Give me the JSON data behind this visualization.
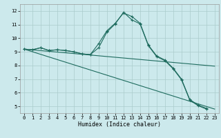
{
  "xlabel": "Humidex (Indice chaleur)",
  "bg_color": "#cce9ec",
  "grid_color": "#aacccc",
  "line_color": "#1e6b5e",
  "xlim": [
    -0.5,
    23.5
  ],
  "ylim": [
    4.5,
    12.5
  ],
  "xticks": [
    0,
    1,
    2,
    3,
    4,
    5,
    6,
    7,
    8,
    9,
    10,
    11,
    12,
    13,
    14,
    15,
    16,
    17,
    18,
    19,
    20,
    21,
    22,
    23
  ],
  "yticks": [
    5,
    6,
    7,
    8,
    9,
    10,
    11,
    12
  ],
  "curves": [
    {
      "x": [
        0,
        1,
        2,
        3,
        4,
        5,
        6,
        7,
        8,
        9,
        10,
        11,
        12,
        13,
        14,
        15,
        16,
        17,
        18,
        19,
        20,
        21,
        22
      ],
      "y": [
        9.2,
        9.15,
        9.3,
        9.1,
        9.15,
        9.1,
        9.0,
        8.85,
        8.8,
        9.6,
        10.55,
        11.1,
        11.85,
        11.6,
        11.1,
        9.5,
        8.7,
        8.4,
        7.8,
        7.0,
        5.5,
        5.1,
        4.85
      ],
      "marker": true
    },
    {
      "x": [
        0,
        1,
        2,
        3,
        4,
        5,
        6,
        7,
        8,
        9,
        10,
        11,
        12,
        13,
        14,
        15,
        16,
        17,
        18,
        19,
        20,
        21,
        22
      ],
      "y": [
        9.2,
        9.15,
        9.3,
        9.1,
        9.15,
        9.1,
        9.0,
        8.85,
        8.8,
        9.3,
        10.45,
        11.05,
        11.9,
        11.35,
        11.05,
        9.45,
        8.65,
        8.35,
        7.75,
        6.95,
        5.45,
        5.05,
        4.8
      ],
      "marker": true
    },
    {
      "x": [
        0,
        23
      ],
      "y": [
        9.2,
        7.95
      ],
      "marker": false
    },
    {
      "x": [
        0,
        23
      ],
      "y": [
        9.2,
        4.8
      ],
      "marker": false
    }
  ],
  "xlabel_fontsize": 6,
  "tick_fontsize": 5
}
